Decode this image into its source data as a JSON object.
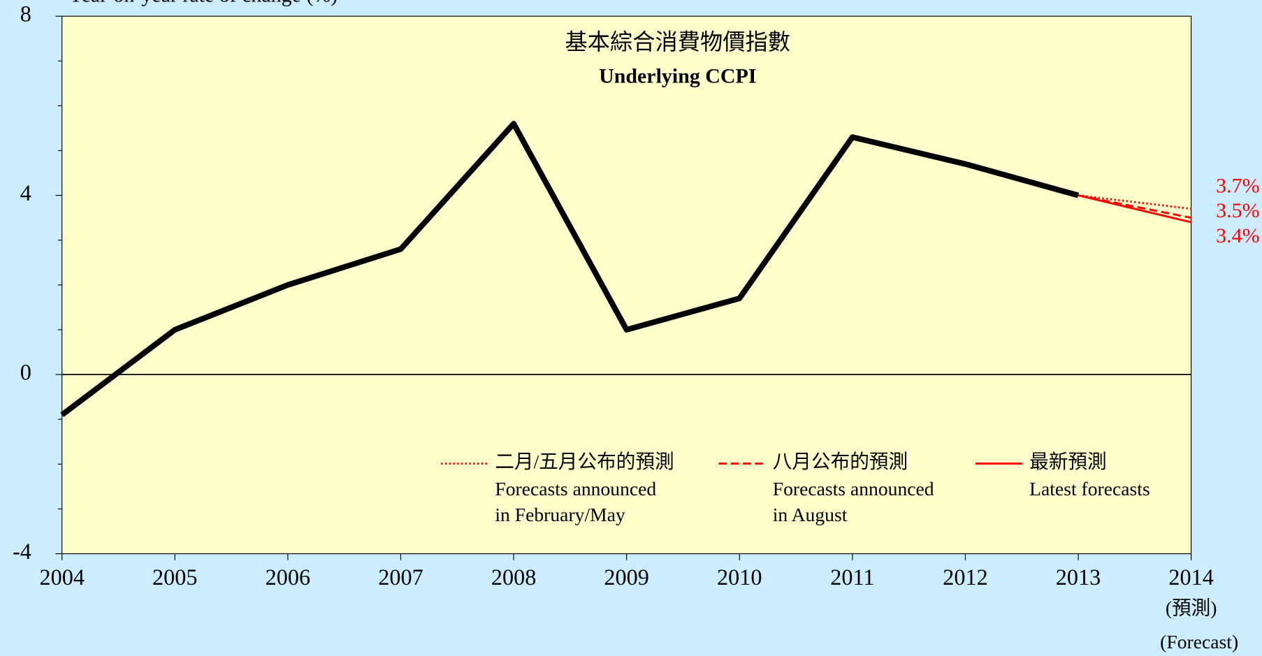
{
  "chart_data": {
    "type": "line",
    "title": "基本綜合消費物價指數",
    "subtitle": "Underlying CCPI",
    "y_label": "Year-on-year rate of change (%)",
    "categories": [
      "2004",
      "2005",
      "2006",
      "2007",
      "2008",
      "2009",
      "2010",
      "2011",
      "2012",
      "2013",
      "2014"
    ],
    "forecast_note": [
      "(預測)",
      "(Forecast)"
    ],
    "ylim": [
      -4,
      8
    ],
    "yticks": [
      -4,
      0,
      4,
      8
    ],
    "yminor_ticks": [
      -3,
      -2,
      -1,
      1,
      2,
      3,
      5,
      6,
      7
    ],
    "series": [
      {
        "color": "#000000",
        "style": "solid",
        "values": [
          -0.9,
          1.0,
          2.0,
          2.8,
          5.6,
          1.0,
          1.7,
          5.3,
          4.7,
          4.0,
          null
        ]
      },
      {
        "name": "二月/五月公布的預測",
        "name_en": [
          "Forecasts announced",
          "in February/May"
        ],
        "color": "#ff0000",
        "style": "dotted",
        "values": [
          null,
          null,
          null,
          null,
          null,
          null,
          null,
          null,
          null,
          4.0,
          3.7
        ],
        "value_labels": [
          null,
          null,
          null,
          null,
          null,
          null,
          null,
          null,
          null,
          null,
          "3.7%"
        ]
      },
      {
        "name": "八月公布的預測",
        "name_en": [
          "Forecasts announced",
          "in August"
        ],
        "color": "#ff0000",
        "style": "dashed",
        "values": [
          null,
          null,
          null,
          null,
          null,
          null,
          null,
          null,
          null,
          4.0,
          3.5
        ],
        "value_labels": [
          null,
          null,
          null,
          null,
          null,
          null,
          null,
          null,
          null,
          null,
          "3.5%"
        ]
      },
      {
        "name": "最新預測",
        "name_en": [
          "Latest forecasts"
        ],
        "color": "#ff0000",
        "style": "solid",
        "values": [
          null,
          null,
          null,
          null,
          null,
          null,
          null,
          null,
          null,
          4.0,
          3.4
        ],
        "value_labels": [
          null,
          null,
          null,
          null,
          null,
          null,
          null,
          null,
          null,
          null,
          "3.4%"
        ]
      }
    ]
  }
}
